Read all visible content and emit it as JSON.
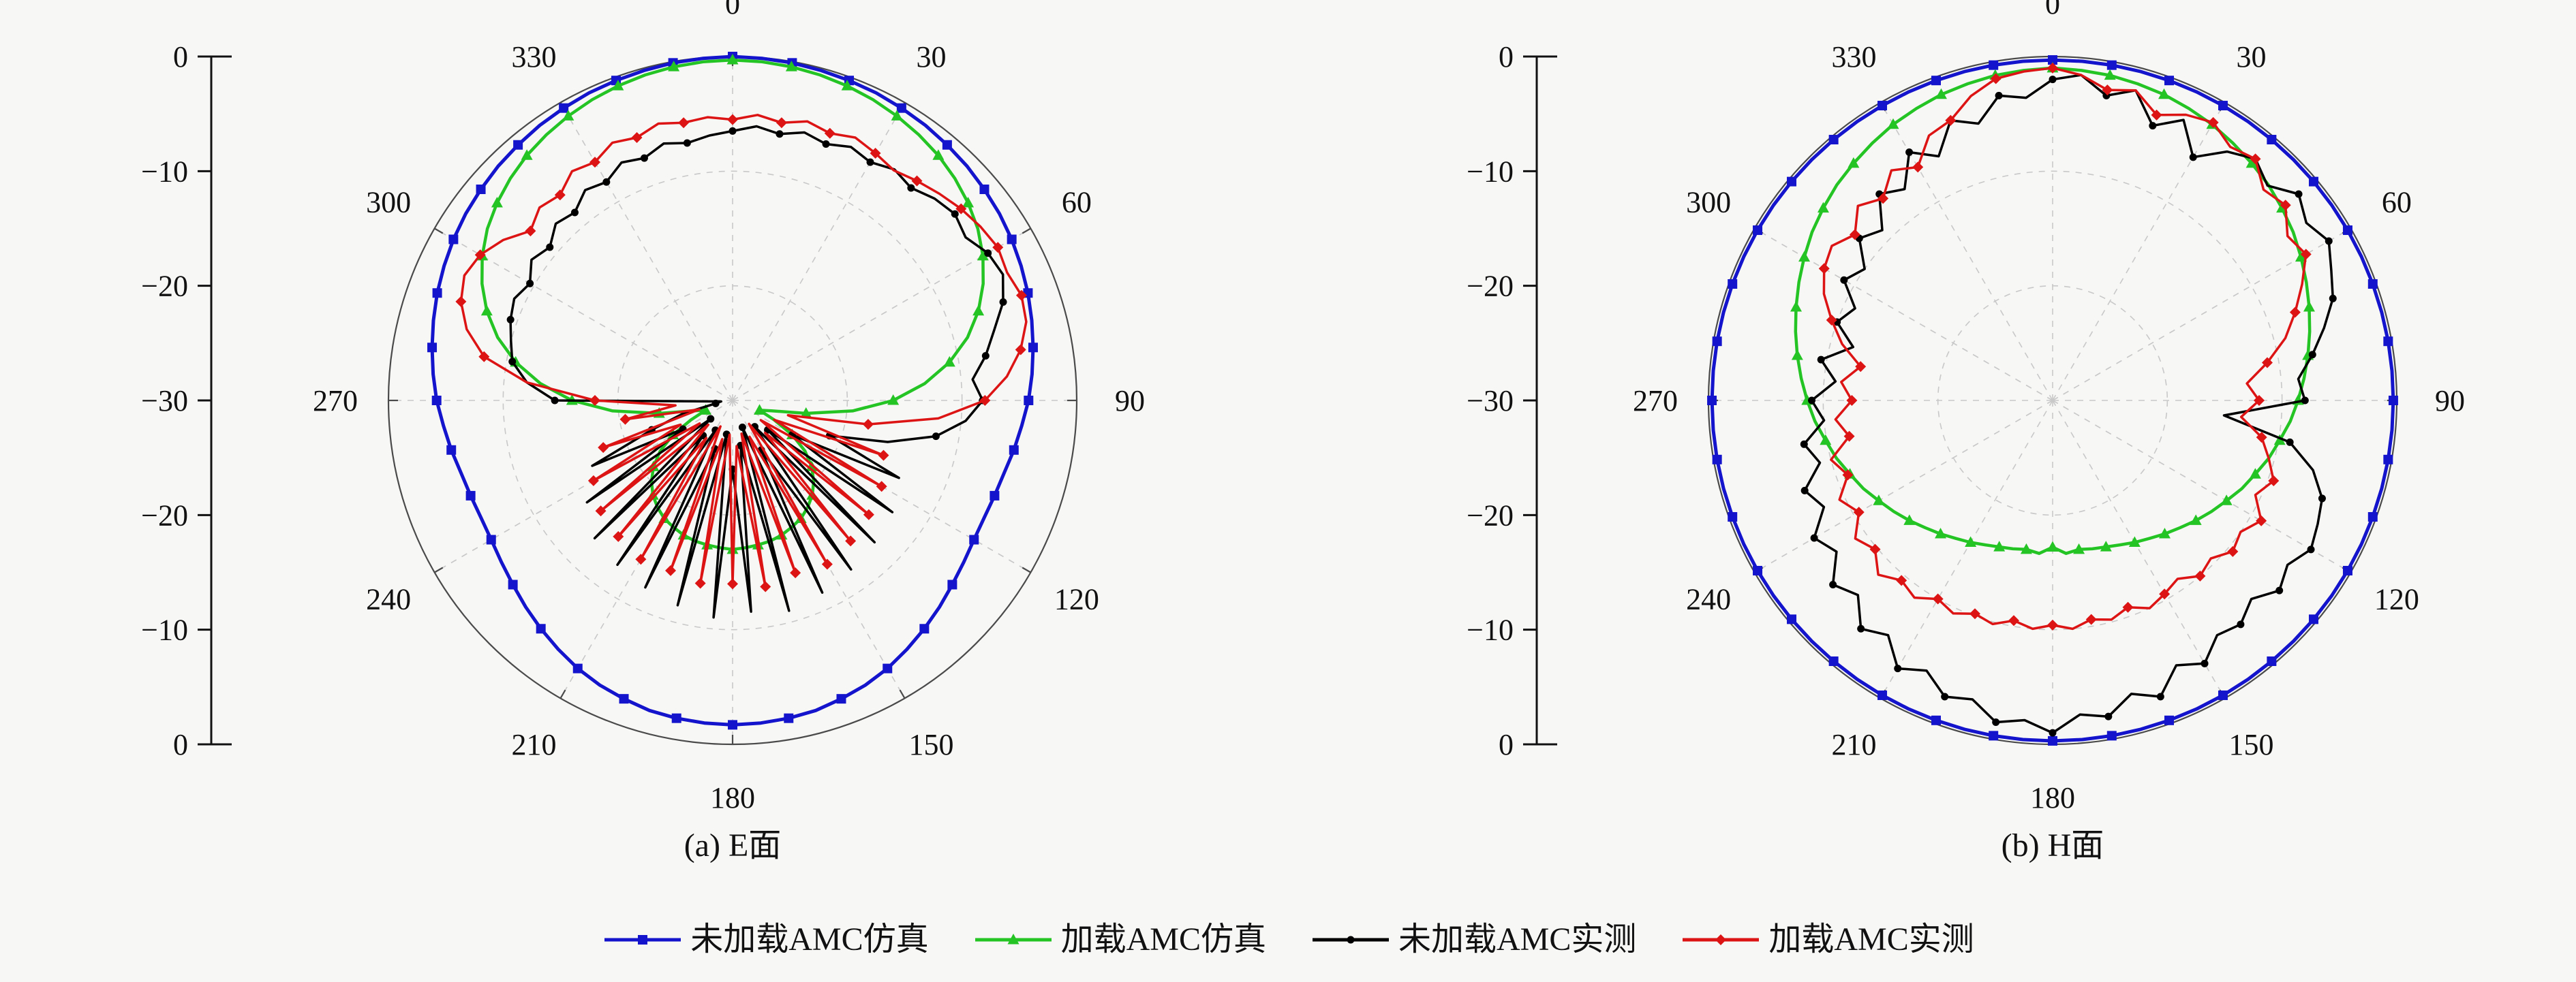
{
  "background": "#f7f7f6",
  "captions": {
    "a": "(a) E面",
    "b": "(b) H面"
  },
  "legend": [
    {
      "label": "未加载AMC仿真",
      "color": "#1414cc",
      "marker": "square"
    },
    {
      "label": "加载AMC仿真",
      "color": "#25c425",
      "marker": "triangle"
    },
    {
      "label": "未加载AMC实测",
      "color": "#000000",
      "marker": "dot"
    },
    {
      "label": "加载AMC实测",
      "color": "#dd1414",
      "marker": "diamond"
    }
  ],
  "chart_data": [
    {
      "type": "polar",
      "title": "(a) E面",
      "angle_unit": "deg",
      "angle_start_deg": 0,
      "angle_step_deg": 5,
      "angular_labels": [
        0,
        30,
        60,
        90,
        120,
        150,
        180,
        210,
        240,
        270,
        300,
        330
      ],
      "radial_ticks_db": [
        0,
        -10,
        -20,
        -30
      ],
      "radial_axis_labels": [
        "0",
        "−10",
        "−20",
        "−30",
        "−20",
        "−10",
        "0"
      ],
      "r_range": [
        -30,
        0
      ],
      "grid": true,
      "series": [
        {
          "name": "未加载AMC仿真",
          "color": "#1414cc",
          "marker": "square",
          "width": 5,
          "marker_every": 2,
          "values": [
            0,
            -0.05,
            -0.1,
            -0.2,
            -0.3,
            -0.4,
            -0.55,
            -0.7,
            -0.9,
            -1.1,
            -1.35,
            -1.6,
            -1.9,
            -2.25,
            -2.6,
            -3,
            -3.4,
            -3.8,
            -4.2,
            -4.7,
            -5.1,
            -5.5,
            -5.7,
            -5.8,
            -5.7,
            -5.4,
            -5,
            -4.5,
            -4,
            -3.5,
            -3,
            -2.6,
            -2.3,
            -2,
            -1.85,
            -1.75,
            -1.7,
            -1.75,
            -1.85,
            -2,
            -2.3,
            -2.6,
            -3,
            -3.5,
            -4,
            -4.5,
            -5,
            -5.4,
            -5.7,
            -5.8,
            -5.7,
            -5.5,
            -5.1,
            -4.7,
            -4.2,
            -3.8,
            -3.4,
            -3,
            -2.6,
            -2.25,
            -1.9,
            -1.6,
            -1.35,
            -1.1,
            -0.9,
            -0.7,
            -0.55,
            -0.4,
            -0.3,
            -0.2,
            -0.1,
            -0.05
          ]
        },
        {
          "name": "加载AMC仿真",
          "color": "#25c425",
          "marker": "triangle",
          "width": 4.5,
          "marker_every": 2,
          "values": [
            -0.3,
            -0.35,
            -0.45,
            -0.6,
            -0.8,
            -1.05,
            -1.35,
            -1.7,
            -2.1,
            -2.6,
            -3.2,
            -3.9,
            -4.8,
            -5.9,
            -7.2,
            -8.8,
            -10.8,
            -13.2,
            -16,
            -19.5,
            -23.5,
            -26.5,
            -27.5,
            -26,
            -24,
            -22.3,
            -21,
            -20,
            -19.2,
            -18.6,
            -18.1,
            -17.8,
            -17.5,
            -17.3,
            -17.2,
            -17.1,
            -17,
            -17.1,
            -17.2,
            -17.3,
            -17.5,
            -17.8,
            -18.1,
            -18.6,
            -19.2,
            -20,
            -21,
            -22.3,
            -24,
            -26,
            -27.5,
            -26.5,
            -23.5,
            -19.5,
            -16,
            -13.2,
            -10.8,
            -8.8,
            -7.2,
            -5.9,
            -4.8,
            -3.9,
            -3.2,
            -2.6,
            -2.1,
            -1.7,
            -1.35,
            -1.05,
            -0.8,
            -0.6,
            -0.45,
            -0.35
          ]
        },
        {
          "name": "未加载AMC实测",
          "color": "#000000",
          "marker": "dot",
          "width": 3.5,
          "marker_every": 2,
          "values": [
            -6.5,
            -6,
            -6.4,
            -5.8,
            -6.2,
            -5.6,
            -6,
            -5.4,
            -5.8,
            -5.1,
            -4.7,
            -5.2,
            -4.3,
            -4,
            -4.9,
            -6.4,
            -7.6,
            -9,
            -8.2,
            -9.6,
            -12,
            -16,
            -21,
            -14,
            -24,
            -13,
            -26,
            -12.5,
            -27,
            -12,
            -25,
            -11.5,
            -27.5,
            -11,
            -26,
            -11.5,
            -24,
            -11,
            -27,
            -11.5,
            -25.5,
            -12,
            -27,
            -12.5,
            -26,
            -13,
            -27.5,
            -14.5,
            -25,
            -16.5,
            -22.5,
            -25.5,
            -28.5,
            -29,
            -14.5,
            -12,
            -10.5,
            -10,
            -9.4,
            -9,
            -9.6,
            -8.6,
            -9.2,
            -8.2,
            -8.6,
            -7.6,
            -8,
            -7.1,
            -7.5,
            -6.8,
            -7.2,
            -6.8
          ]
        },
        {
          "name": "加载AMC实测",
          "color": "#dd1414",
          "marker": "diamond",
          "width": 3.5,
          "marker_every": 2,
          "values": [
            -5.5,
            -5,
            -5.4,
            -4.8,
            -5.2,
            -4.7,
            -5.1,
            -5.5,
            -5,
            -4.5,
            -4,
            -3.6,
            -3.3,
            -3.6,
            -3.2,
            -3.5,
            -4.5,
            -6,
            -8,
            -12,
            -18,
            -25,
            -16,
            -26,
            -15,
            -27,
            -14.5,
            -26,
            -14,
            -27.5,
            -13.5,
            -26.5,
            -14,
            -27,
            -13.5,
            -26,
            -14,
            -27,
            -13.8,
            -26.5,
            -14.2,
            -27.5,
            -14,
            -26,
            -14.5,
            -27,
            -15,
            -26.5,
            -16,
            -25,
            -18,
            -27,
            -20.5,
            -25,
            -18,
            -12,
            -8,
            -6,
            -4.8,
            -4.2,
            -4.6,
            -5.6,
            -7,
            -6.2,
            -6.6,
            -5.6,
            -6,
            -5.2,
            -5.6,
            -5,
            -5.4,
            -5.2
          ]
        }
      ]
    },
    {
      "type": "polar",
      "title": "(b) H面",
      "angle_unit": "deg",
      "angle_start_deg": 0,
      "angle_step_deg": 5,
      "angular_labels": [
        0,
        30,
        60,
        90,
        120,
        150,
        180,
        210,
        240,
        270,
        300,
        330
      ],
      "radial_ticks_db": [
        0,
        -10,
        -20,
        -30
      ],
      "radial_axis_labels": [
        "0",
        "−10",
        "−20",
        "−30",
        "−20",
        "−10",
        "0"
      ],
      "r_range": [
        -30,
        0
      ],
      "grid": true,
      "series": [
        {
          "name": "未加载AMC仿真",
          "color": "#1414cc",
          "marker": "square",
          "width": 5,
          "marker_every": 2,
          "values": [
            -0.3,
            -0.3,
            -0.3,
            -0.3,
            -0.3,
            -0.3,
            -0.3,
            -0.3,
            -0.3,
            -0.3,
            -0.3,
            -0.3,
            -0.3,
            -0.3,
            -0.3,
            -0.3,
            -0.3,
            -0.3,
            -0.3,
            -0.3,
            -0.3,
            -0.3,
            -0.3,
            -0.3,
            -0.3,
            -0.3,
            -0.3,
            -0.3,
            -0.3,
            -0.3,
            -0.3,
            -0.3,
            -0.3,
            -0.3,
            -0.3,
            -0.3,
            -0.3,
            -0.3,
            -0.3,
            -0.3,
            -0.3,
            -0.3,
            -0.3,
            -0.3,
            -0.3,
            -0.3,
            -0.3,
            -0.3,
            -0.3,
            -0.3,
            -0.3,
            -0.3,
            -0.3,
            -0.3,
            -0.3,
            -0.3,
            -0.3,
            -0.3,
            -0.3,
            -0.3,
            -0.3,
            -0.3,
            -0.3,
            -0.3,
            -0.3,
            -0.3,
            -0.3,
            -0.3,
            -0.3,
            -0.3,
            -0.3,
            -0.3
          ]
        },
        {
          "name": "加载AMC仿真",
          "color": "#25c425",
          "marker": "triangle",
          "width": 4.5,
          "marker_every": 2,
          "values": [
            -1,
            -1.1,
            -1.2,
            -1.4,
            -1.6,
            -1.9,
            -2.2,
            -2.6,
            -3,
            -3.4,
            -3.9,
            -4.4,
            -5,
            -5.6,
            -6.2,
            -6.8,
            -7.4,
            -8,
            -8.6,
            -9.2,
            -9.9,
            -10.5,
            -11.2,
            -11.8,
            -12.5,
            -13.1,
            -13.7,
            -14.3,
            -14.8,
            -15.3,
            -15.7,
            -16.1,
            -16.4,
            -16.6,
            -16.8,
            -16.6,
            -17.2,
            -16.6,
            -16.8,
            -16.6,
            -16.4,
            -16.1,
            -15.7,
            -15.3,
            -14.8,
            -14.3,
            -13.7,
            -13.1,
            -12.5,
            -11.8,
            -11.2,
            -10.5,
            -9.9,
            -9.2,
            -8.6,
            -8,
            -7.4,
            -6.8,
            -6.2,
            -5.6,
            -5,
            -4.4,
            -3.9,
            -3.4,
            -3,
            -2.6,
            -2.2,
            -1.9,
            -1.6,
            -1.4,
            -1.2,
            -1.1
          ]
        },
        {
          "name": "未加载AMC实测",
          "color": "#000000",
          "marker": "dot",
          "width": 3.5,
          "marker_every": 2,
          "values": [
            -2,
            -1.5,
            -3,
            -2,
            -4.5,
            -3,
            -5.5,
            -3.5,
            -2.5,
            -3.5,
            -2,
            -3,
            -2.2,
            -3.2,
            -4,
            -5.5,
            -7,
            -8.5,
            -8,
            -15,
            -9,
            -6.5,
            -5,
            -4.5,
            -4,
            -5,
            -4.2,
            -5.5,
            -4.5,
            -5,
            -3.5,
            -4.5,
            -2.5,
            -3.5,
            -2,
            -2.5,
            -1,
            -2,
            -1.5,
            -3,
            -2.5,
            -4,
            -3,
            -5,
            -4,
            -6,
            -5,
            -7,
            -6,
            -8,
            -7,
            -9,
            -8,
            -10,
            -9,
            -11,
            -9.5,
            -12,
            -10,
            -11,
            -9,
            -10,
            -8,
            -9,
            -6.5,
            -7.5,
            -5,
            -6.5,
            -4,
            -5,
            -3,
            -3.5
          ]
        },
        {
          "name": "加载AMC实测",
          "color": "#dd1414",
          "marker": "diamond",
          "width": 3.5,
          "marker_every": 2,
          "values": [
            -1,
            -1.5,
            -2.5,
            -2,
            -3.5,
            -2.5,
            -2,
            -3,
            -2.5,
            -4,
            -3.5,
            -5,
            -4.5,
            -6,
            -7.5,
            -9,
            -11,
            -13,
            -12,
            -13.5,
            -11.5,
            -10.5,
            -9.5,
            -10.5,
            -9,
            -10,
            -9.5,
            -10.5,
            -10,
            -11,
            -10.5,
            -10,
            -10.8,
            -10.2,
            -10.6,
            -10,
            -10.4,
            -10,
            -10.5,
            -9.8,
            -10.2,
            -9.5,
            -10,
            -9,
            -9.5,
            -8.5,
            -9.8,
            -9,
            -10.5,
            -9.5,
            -11,
            -10,
            -12,
            -11,
            -12.5,
            -11.5,
            -13,
            -11,
            -9.5,
            -8,
            -7,
            -6.5,
            -7.5,
            -6,
            -7,
            -5.5,
            -6.5,
            -4.5,
            -4,
            -2.5,
            -1.5,
            -1.2
          ]
        }
      ]
    }
  ]
}
